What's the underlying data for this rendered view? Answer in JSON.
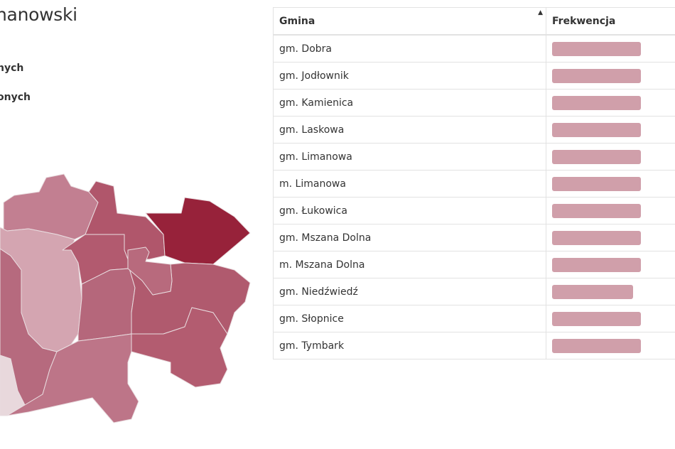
{
  "header": {
    "title_fragment": "nanowski"
  },
  "labels": [
    "nych",
    "onych"
  ],
  "table": {
    "columns": [
      "Gmina",
      "Frekwencja"
    ],
    "sort_indicator": "▲",
    "bar_color": "#d09faa",
    "rows": [
      {
        "name": "gm. Dobra",
        "bar": 0.6
      },
      {
        "name": "gm. Jodłownik",
        "bar": 0.6
      },
      {
        "name": "gm. Kamienica",
        "bar": 0.6
      },
      {
        "name": "gm. Laskowa",
        "bar": 0.6
      },
      {
        "name": "gm. Limanowa",
        "bar": 0.6
      },
      {
        "name": "m. Limanowa",
        "bar": 0.6
      },
      {
        "name": "gm. Łukowica",
        "bar": 0.6
      },
      {
        "name": "gm. Mszana Dolna",
        "bar": 0.6
      },
      {
        "name": "m. Mszana Dolna",
        "bar": 0.6
      },
      {
        "name": "gm. Niedźwiedź",
        "bar": 0.55
      },
      {
        "name": "gm. Słopnice",
        "bar": 0.6
      },
      {
        "name": "gm. Tymbark",
        "bar": 0.6
      }
    ]
  },
  "map": {
    "colors": {
      "region_a": "#c27f91",
      "region_b": "#d4a5b1",
      "region_c": "#b0566b",
      "region_d": "#97223a",
      "region_e": "#b25a6f",
      "region_f": "#b86a7d",
      "region_g": "#b5677b",
      "region_h": "#b05a6e",
      "region_i": "#b35c70",
      "region_j": "#bd7588",
      "region_k": "#b66a7e",
      "region_l": "#e8d8dc"
    }
  }
}
